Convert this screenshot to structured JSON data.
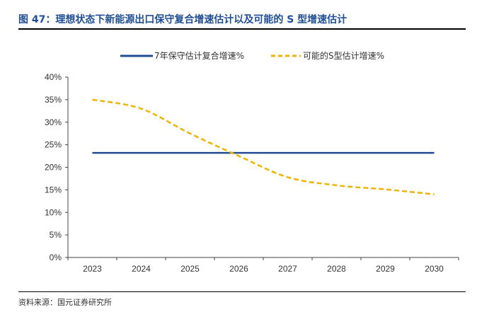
{
  "figure": {
    "title": "图 47：理想状态下新能源出口保守复合增速估计以及可能的 S 型增速估计",
    "source": "资料来源：国元证券研究所"
  },
  "chart_data": {
    "type": "line",
    "x": [
      "2023",
      "2024",
      "2025",
      "2026",
      "2027",
      "2028",
      "2029",
      "2030"
    ],
    "series": [
      {
        "name": "7年保守估计复合增速%",
        "values": [
          0.232,
          0.232,
          0.232,
          0.232,
          0.232,
          0.232,
          0.232,
          0.232
        ],
        "color": "#1f4e96",
        "style": "solid"
      },
      {
        "name": "可能的S型估计增速%",
        "values": [
          0.35,
          0.33,
          0.275,
          0.225,
          0.178,
          0.16,
          0.151,
          0.14
        ],
        "color": "#f0b400",
        "style": "dashed"
      }
    ],
    "ylim": [
      0,
      0.4
    ],
    "yticks": [
      "0%",
      "5%",
      "10%",
      "15%",
      "20%",
      "25%",
      "30%",
      "35%",
      "40%"
    ],
    "legend_position": "top",
    "grid": false
  }
}
